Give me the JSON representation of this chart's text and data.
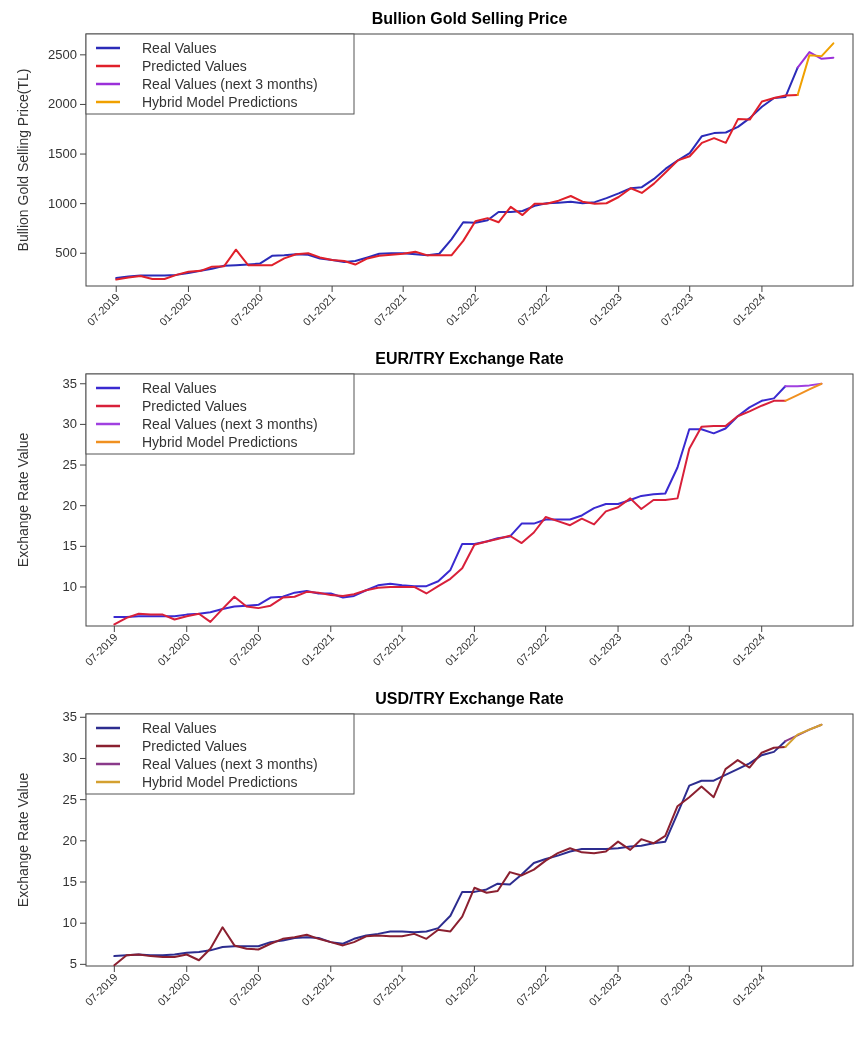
{
  "chart_data": [
    {
      "type": "line",
      "title": "Bullion Gold Selling Price",
      "ylabel": "Bullion Gold Selling Price(TL)",
      "legend": "top left",
      "grid": false,
      "line_style": "solid",
      "marker": "none",
      "xlim": [
        "2019-04-15",
        "2024-08-20"
      ],
      "ylim": [
        170,
        2710
      ],
      "yticks": [
        500,
        1000,
        1500,
        2000,
        2500
      ],
      "xticks": [
        {
          "value": "2019-07",
          "label": "07-2019"
        },
        {
          "value": "2020-01",
          "label": "01-2020"
        },
        {
          "value": "2020-07",
          "label": "07-2020"
        },
        {
          "value": "2021-01",
          "label": "01-2021"
        },
        {
          "value": "2021-07",
          "label": "07-2021"
        },
        {
          "value": "2022-01",
          "label": "01-2022"
        },
        {
          "value": "2022-07",
          "label": "07-2022"
        },
        {
          "value": "2023-01",
          "label": "01-2023"
        },
        {
          "value": "2023-07",
          "label": "07-2023"
        },
        {
          "value": "2024-01",
          "label": "01-2024"
        }
      ],
      "x": [
        "2019-07",
        "2019-08",
        "2019-09",
        "2019-10",
        "2019-11",
        "2019-12",
        "2020-01",
        "2020-02",
        "2020-03",
        "2020-04",
        "2020-05",
        "2020-06",
        "2020-07",
        "2020-08",
        "2020-09",
        "2020-10",
        "2020-11",
        "2020-12",
        "2021-01",
        "2021-02",
        "2021-03",
        "2021-04",
        "2021-05",
        "2021-06",
        "2021-07",
        "2021-08",
        "2021-09",
        "2021-10",
        "2021-11",
        "2021-12",
        "2022-01",
        "2022-02",
        "2022-03",
        "2022-04",
        "2022-05",
        "2022-06",
        "2022-07",
        "2022-08",
        "2022-09",
        "2022-10",
        "2022-11",
        "2022-12",
        "2023-01",
        "2023-02",
        "2023-03",
        "2023-04",
        "2023-05",
        "2023-06",
        "2023-07",
        "2023-08",
        "2023-09",
        "2023-10",
        "2023-11",
        "2023-12",
        "2024-01",
        "2024-02",
        "2024-03",
        "2024-04"
      ],
      "series": [
        {
          "name": "Real Values",
          "color": "#2b2bb8",
          "values": [
            250,
            266,
            276,
            276,
            276,
            282,
            302,
            323,
            344,
            375,
            380,
            386,
            396,
            474,
            479,
            490,
            484,
            448,
            432,
            412,
            422,
            458,
            495,
            500,
            500,
            490,
            479,
            495,
            640,
            812,
            807,
            833,
            916,
            916,
            926,
            978,
            1004,
            1010,
            1020,
            1004,
            1015,
            1056,
            1103,
            1155,
            1166,
            1249,
            1353,
            1436,
            1509,
            1680,
            1711,
            1717,
            1774,
            1862,
            1977,
            2065,
            2076,
            2372
          ]
        },
        {
          "name": "Predicted Values",
          "color": "#e0202a",
          "values": [
            235,
            256,
            271,
            240,
            240,
            282,
            313,
            323,
            365,
            370,
            536,
            380,
            380,
            380,
            448,
            490,
            500,
            458,
            432,
            422,
            386,
            448,
            474,
            484,
            495,
            516,
            479,
            479,
            479,
            625,
            822,
            854,
            812,
            968,
            885,
            999,
            999,
            1030,
            1077,
            1020,
            999,
            1004,
            1067,
            1155,
            1108,
            1202,
            1316,
            1436,
            1478,
            1613,
            1660,
            1613,
            1852,
            1847,
            2029,
            2065,
            2091,
            2096
          ]
        },
        {
          "name": "Real Values (next 3 months)",
          "color": "#9b30d9",
          "x": [
            "2024-04",
            "2024-05",
            "2024-06",
            "2024-07"
          ],
          "values": [
            2372,
            2528,
            2460,
            2471
          ]
        },
        {
          "name": "Hybrid Model Predictions",
          "color": "#f0a000",
          "x": [
            "2024-04",
            "2024-05",
            "2024-06",
            "2024-07"
          ],
          "values": [
            2096,
            2497,
            2487,
            2616
          ]
        }
      ]
    },
    {
      "type": "line",
      "title": "EUR/TRY Exchange Rate",
      "ylabel": "Exchange Rate Value",
      "legend": "top left",
      "grid": false,
      "line_style": "solid",
      "marker": "none",
      "xlim": [
        "2019-04-20",
        "2024-08-20"
      ],
      "ylim": [
        5.2,
        36.2
      ],
      "yticks": [
        10,
        15,
        20,
        25,
        30,
        35
      ],
      "xticks": [
        {
          "value": "2019-07",
          "label": "07-2019"
        },
        {
          "value": "2020-01",
          "label": "01-2020"
        },
        {
          "value": "2020-07",
          "label": "07-2020"
        },
        {
          "value": "2021-01",
          "label": "01-2021"
        },
        {
          "value": "2021-07",
          "label": "07-2021"
        },
        {
          "value": "2022-01",
          "label": "01-2022"
        },
        {
          "value": "2022-07",
          "label": "07-2022"
        },
        {
          "value": "2023-01",
          "label": "01-2023"
        },
        {
          "value": "2023-07",
          "label": "07-2023"
        },
        {
          "value": "2024-01",
          "label": "01-2024"
        }
      ],
      "x": [
        "2019-07",
        "2019-08",
        "2019-09",
        "2019-10",
        "2019-11",
        "2019-12",
        "2020-01",
        "2020-02",
        "2020-03",
        "2020-04",
        "2020-05",
        "2020-06",
        "2020-07",
        "2020-08",
        "2020-09",
        "2020-10",
        "2020-11",
        "2020-12",
        "2021-01",
        "2021-02",
        "2021-03",
        "2021-04",
        "2021-05",
        "2021-06",
        "2021-07",
        "2021-08",
        "2021-09",
        "2021-10",
        "2021-11",
        "2021-12",
        "2022-01",
        "2022-02",
        "2022-03",
        "2022-04",
        "2022-05",
        "2022-06",
        "2022-07",
        "2022-08",
        "2022-09",
        "2022-10",
        "2022-11",
        "2022-12",
        "2023-01",
        "2023-02",
        "2023-03",
        "2023-04",
        "2023-05",
        "2023-06",
        "2023-07",
        "2023-08",
        "2023-09",
        "2023-10",
        "2023-11",
        "2023-12",
        "2024-01",
        "2024-02",
        "2024-03"
      ],
      "series": [
        {
          "name": "Real Values",
          "color": "#3a2ad0",
          "values": [
            6.3,
            6.3,
            6.4,
            6.4,
            6.4,
            6.4,
            6.6,
            6.7,
            6.9,
            7.3,
            7.6,
            7.7,
            7.8,
            8.7,
            8.8,
            9.3,
            9.5,
            9.2,
            9.2,
            8.7,
            8.9,
            9.6,
            10.2,
            10.4,
            10.2,
            10.1,
            10.1,
            10.7,
            12.1,
            15.3,
            15.3,
            15.6,
            16.0,
            16.2,
            17.8,
            17.8,
            18.3,
            18.3,
            18.3,
            18.8,
            19.7,
            20.2,
            20.2,
            20.7,
            21.2,
            21.4,
            21.5,
            24.7,
            29.4,
            29.4,
            28.9,
            29.5,
            31.0,
            32.1,
            32.9,
            33.2,
            34.7
          ]
        },
        {
          "name": "Predicted Values",
          "color": "#d8203a",
          "values": [
            5.4,
            6.2,
            6.7,
            6.6,
            6.6,
            6.0,
            6.4,
            6.7,
            5.7,
            7.3,
            8.8,
            7.6,
            7.4,
            7.7,
            8.7,
            8.8,
            9.4,
            9.3,
            9.0,
            8.9,
            9.1,
            9.6,
            9.9,
            10.0,
            10.0,
            10.0,
            9.2,
            10.1,
            11.0,
            12.3,
            15.2,
            15.6,
            15.9,
            16.3,
            15.4,
            16.7,
            18.6,
            18.1,
            17.6,
            18.4,
            17.7,
            19.3,
            19.8,
            20.9,
            19.6,
            20.7,
            20.7,
            20.9,
            27.0,
            29.7,
            29.8,
            29.8,
            31.0,
            31.6,
            32.3,
            32.9,
            32.9
          ]
        },
        {
          "name": "Real Values (next 3 months)",
          "color": "#a040e0",
          "x": [
            "2024-03",
            "2024-04",
            "2024-05",
            "2024-06"
          ],
          "values": [
            34.7,
            34.7,
            34.8,
            35.0
          ]
        },
        {
          "name": "Hybrid Model Predictions",
          "color": "#f09020",
          "x": [
            "2024-03",
            "2024-04",
            "2024-05",
            "2024-06"
          ],
          "values": [
            32.9,
            33.6,
            34.3,
            35.0
          ]
        }
      ]
    },
    {
      "type": "line",
      "title": "USD/TRY Exchange Rate",
      "ylabel": "Exchange Rate Value",
      "legend": "top left",
      "grid": false,
      "line_style": "solid",
      "marker": "none",
      "xlim": [
        "2019-04-20",
        "2024-08-20"
      ],
      "ylim": [
        4.8,
        35.4
      ],
      "yticks": [
        5,
        10,
        15,
        20,
        25,
        30,
        35
      ],
      "xticks": [
        {
          "value": "2019-07",
          "label": "07-2019"
        },
        {
          "value": "2020-01",
          "label": "01-2020"
        },
        {
          "value": "2020-07",
          "label": "07-2020"
        },
        {
          "value": "2021-01",
          "label": "01-2021"
        },
        {
          "value": "2021-07",
          "label": "07-2021"
        },
        {
          "value": "2022-01",
          "label": "01-2022"
        },
        {
          "value": "2022-07",
          "label": "07-2022"
        },
        {
          "value": "2023-01",
          "label": "01-2023"
        },
        {
          "value": "2023-07",
          "label": "07-2023"
        },
        {
          "value": "2024-01",
          "label": "01-2024"
        }
      ],
      "x": [
        "2019-07",
        "2019-08",
        "2019-09",
        "2019-10",
        "2019-11",
        "2019-12",
        "2020-01",
        "2020-02",
        "2020-03",
        "2020-04",
        "2020-05",
        "2020-06",
        "2020-07",
        "2020-08",
        "2020-09",
        "2020-10",
        "2020-11",
        "2020-12",
        "2021-01",
        "2021-02",
        "2021-03",
        "2021-04",
        "2021-05",
        "2021-06",
        "2021-07",
        "2021-08",
        "2021-09",
        "2021-10",
        "2021-11",
        "2021-12",
        "2022-01",
        "2022-02",
        "2022-03",
        "2022-04",
        "2022-05",
        "2022-06",
        "2022-07",
        "2022-08",
        "2022-09",
        "2022-10",
        "2022-11",
        "2022-12",
        "2023-01",
        "2023-02",
        "2023-03",
        "2023-04",
        "2023-05",
        "2023-06",
        "2023-07",
        "2023-08",
        "2023-09",
        "2023-10",
        "2023-11",
        "2023-12",
        "2024-01",
        "2024-02",
        "2024-03"
      ],
      "series": [
        {
          "name": "Real Values",
          "color": "#2d2d8f",
          "values": [
            6.0,
            6.1,
            6.2,
            6.1,
            6.1,
            6.2,
            6.4,
            6.5,
            6.7,
            7.1,
            7.2,
            7.2,
            7.2,
            7.7,
            7.9,
            8.2,
            8.3,
            8.2,
            7.7,
            7.5,
            8.1,
            8.5,
            8.7,
            9.0,
            9.0,
            8.9,
            9.0,
            9.4,
            10.9,
            13.8,
            13.8,
            14.1,
            14.8,
            14.7,
            15.9,
            17.3,
            17.8,
            18.2,
            18.7,
            19.0,
            19.0,
            19.0,
            19.1,
            19.3,
            19.4,
            19.7,
            19.9,
            23.3,
            26.7,
            27.3,
            27.3,
            28.0,
            28.7,
            29.4,
            30.4,
            30.8,
            32.1
          ]
        },
        {
          "name": "Predicted Values",
          "color": "#8b2030",
          "values": [
            4.9,
            6.1,
            6.2,
            6.0,
            5.9,
            5.9,
            6.2,
            5.5,
            6.9,
            9.5,
            7.3,
            6.9,
            6.8,
            7.5,
            8.1,
            8.3,
            8.6,
            8.1,
            7.7,
            7.3,
            7.7,
            8.4,
            8.5,
            8.4,
            8.4,
            8.7,
            8.1,
            9.2,
            9.0,
            10.8,
            14.3,
            13.7,
            13.9,
            16.2,
            15.8,
            16.5,
            17.6,
            18.5,
            19.1,
            18.6,
            18.5,
            18.7,
            19.9,
            18.9,
            20.2,
            19.7,
            20.6,
            24.2,
            25.3,
            26.6,
            25.3,
            28.7,
            29.8,
            28.9,
            30.7,
            31.3,
            31.4
          ]
        },
        {
          "name": "Real Values (next 3 months)",
          "color": "#8a3a8a",
          "x": [
            "2024-03",
            "2024-04",
            "2024-05",
            "2024-06"
          ],
          "values": [
            32.1,
            32.8,
            33.5,
            34.1
          ]
        },
        {
          "name": "Hybrid Model Predictions",
          "color": "#d4a030",
          "x": [
            "2024-03",
            "2024-04",
            "2024-05",
            "2024-06"
          ],
          "values": [
            31.4,
            32.9,
            33.5,
            34.1
          ]
        }
      ]
    }
  ]
}
